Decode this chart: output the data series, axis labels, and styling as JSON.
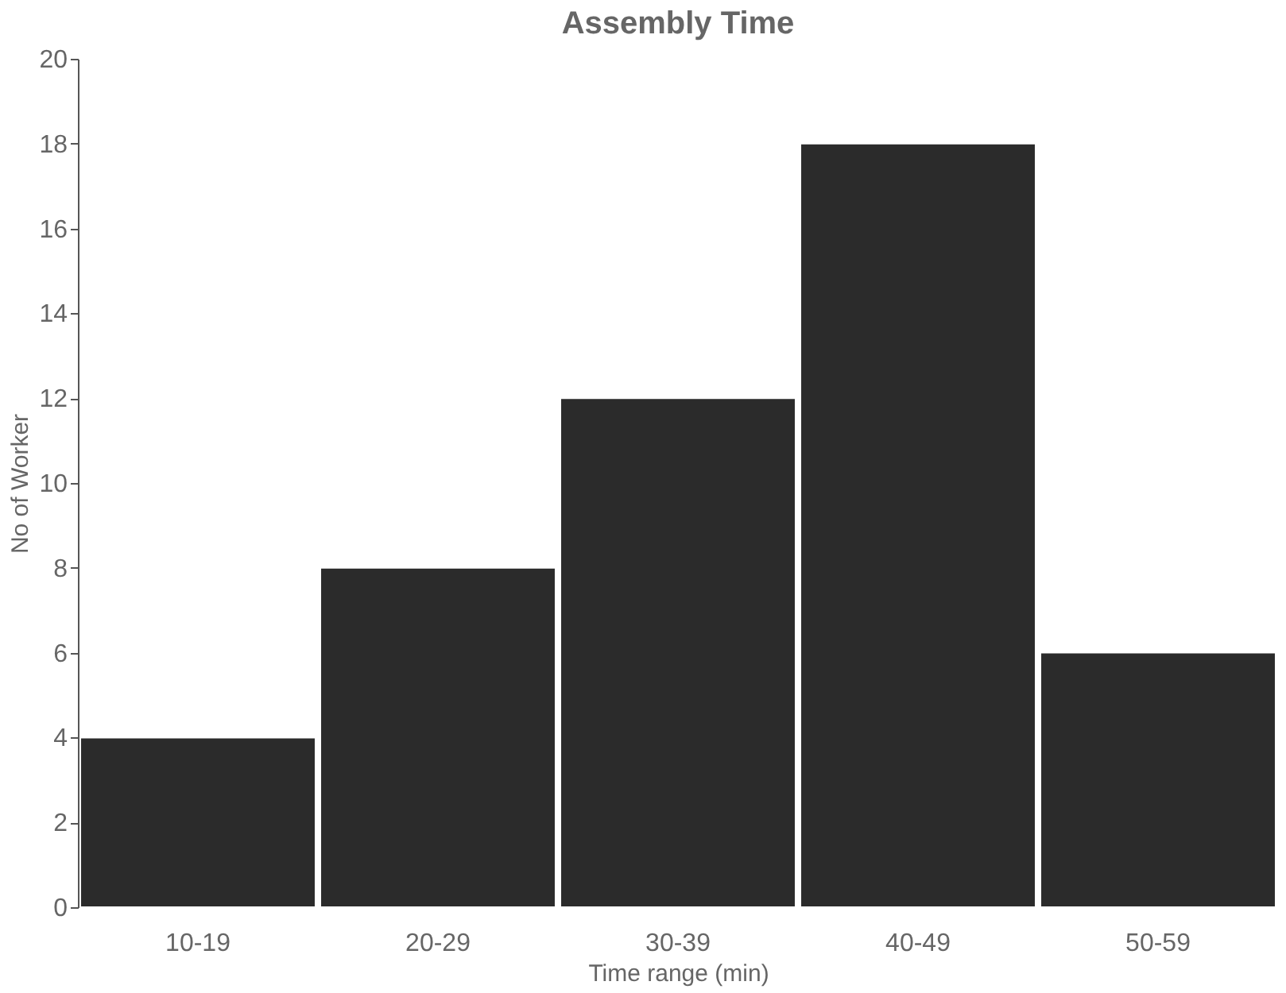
{
  "chart_data": {
    "type": "bar",
    "title": "Assembly Time",
    "xlabel": "Time range (min)",
    "ylabel": "No of Worker",
    "categories": [
      "10-19",
      "20-29",
      "30-39",
      "40-49",
      "50-59"
    ],
    "values": [
      4,
      8,
      12,
      18,
      6
    ],
    "color": "#2b2b2b",
    "ylim": [
      0,
      20
    ],
    "yticks": [
      0,
      2,
      4,
      6,
      8,
      10,
      12,
      14,
      16,
      18,
      20
    ],
    "grid": false
  }
}
